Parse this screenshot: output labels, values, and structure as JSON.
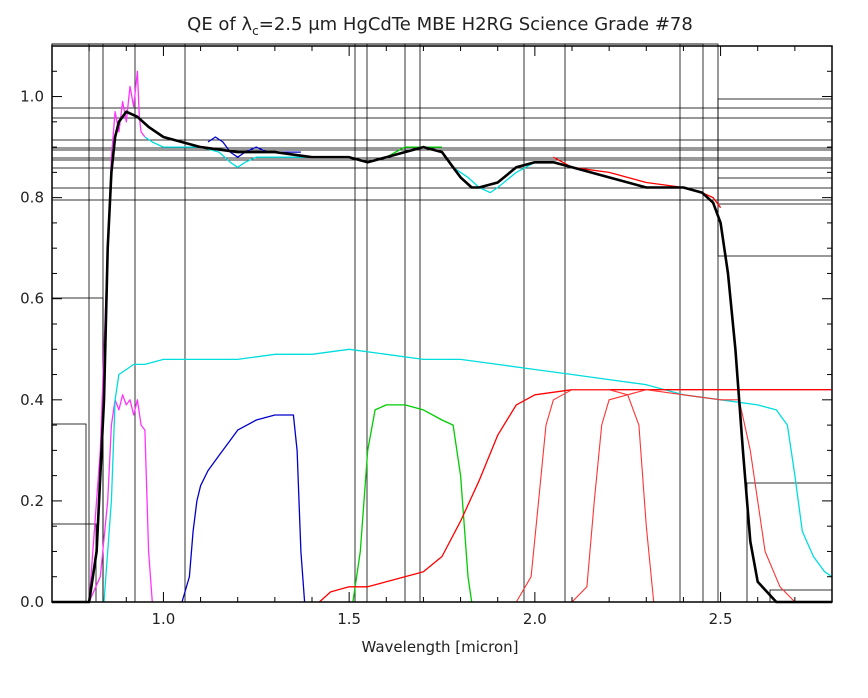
{
  "chart_data": {
    "type": "line",
    "title": "QE of λc=2.5 μm HgCdTe MBE H2RG Science Grade #78",
    "title_parts": {
      "pre": "QE of λ",
      "sub": "c",
      "post": "=2.5 μm HgCdTe MBE H2RG Science Grade #78"
    },
    "xlabel": "Wavelength [micron]",
    "ylabel": "",
    "xlim": [
      0.7,
      2.8
    ],
    "ylim": [
      0.0,
      1.1
    ],
    "x_ticks": [
      1.0,
      1.5,
      2.0,
      2.5
    ],
    "x_tick_labels": [
      "1.0",
      "1.5",
      "2.0",
      "2.5"
    ],
    "y_ticks": [
      0.0,
      0.2,
      0.4,
      0.6,
      0.8,
      1.0
    ],
    "y_tick_labels": [
      "0.0",
      "0.2",
      "0.4",
      "0.6",
      "0.8",
      "1.0"
    ],
    "grid": false,
    "legend": "none",
    "series": [
      {
        "color": "#ff33ff",
        "width": 1.3,
        "points": [
          [
            0.8,
            0.0
          ],
          [
            0.83,
            0.05
          ],
          [
            0.85,
            0.2
          ],
          [
            0.86,
            0.35
          ],
          [
            0.87,
            0.4
          ],
          [
            0.88,
            0.38
          ],
          [
            0.89,
            0.41
          ],
          [
            0.9,
            0.39
          ],
          [
            0.91,
            0.4
          ],
          [
            0.92,
            0.37
          ],
          [
            0.93,
            0.4
          ],
          [
            0.94,
            0.35
          ],
          [
            0.95,
            0.34
          ],
          [
            0.96,
            0.1
          ],
          [
            0.97,
            0.0
          ]
        ]
      },
      {
        "color": "#ff33ff",
        "width": 1.3,
        "points": [
          [
            0.8,
            0.0
          ],
          [
            0.83,
            0.3
          ],
          [
            0.85,
            0.7
          ],
          [
            0.86,
            0.88
          ],
          [
            0.87,
            0.97
          ],
          [
            0.88,
            0.93
          ],
          [
            0.89,
            0.99
          ],
          [
            0.9,
            0.95
          ],
          [
            0.91,
            1.02
          ],
          [
            0.92,
            0.98
          ],
          [
            0.93,
            1.05
          ],
          [
            0.935,
            0.96
          ],
          [
            0.94,
            0.93
          ],
          [
            0.95,
            0.92
          ]
        ]
      },
      {
        "color": "#00dddd",
        "width": 1.3,
        "points": [
          [
            0.84,
            0.0
          ],
          [
            0.86,
            0.2
          ],
          [
            0.87,
            0.4
          ],
          [
            0.88,
            0.45
          ],
          [
            0.9,
            0.46
          ],
          [
            0.92,
            0.47
          ],
          [
            0.95,
            0.47
          ],
          [
            1.0,
            0.48
          ],
          [
            1.1,
            0.48
          ],
          [
            1.2,
            0.48
          ],
          [
            1.3,
            0.49
          ],
          [
            1.4,
            0.49
          ],
          [
            1.5,
            0.5
          ],
          [
            1.6,
            0.49
          ],
          [
            1.7,
            0.48
          ],
          [
            1.8,
            0.48
          ],
          [
            1.9,
            0.47
          ],
          [
            2.0,
            0.46
          ],
          [
            2.1,
            0.45
          ],
          [
            2.2,
            0.44
          ],
          [
            2.3,
            0.43
          ],
          [
            2.4,
            0.41
          ],
          [
            2.5,
            0.4
          ],
          [
            2.6,
            0.39
          ],
          [
            2.65,
            0.38
          ],
          [
            2.68,
            0.35
          ],
          [
            2.7,
            0.25
          ],
          [
            2.72,
            0.14
          ],
          [
            2.75,
            0.09
          ],
          [
            2.78,
            0.06
          ],
          [
            2.8,
            0.05
          ]
        ]
      },
      {
        "color": "#00dddd",
        "width": 1.3,
        "points": [
          [
            0.95,
            0.92
          ],
          [
            0.97,
            0.91
          ],
          [
            1.0,
            0.9
          ],
          [
            1.1,
            0.9
          ],
          [
            1.15,
            0.89
          ],
          [
            1.18,
            0.87
          ],
          [
            1.2,
            0.86
          ],
          [
            1.22,
            0.87
          ],
          [
            1.25,
            0.88
          ],
          [
            1.3,
            0.88
          ],
          [
            1.4,
            0.88
          ],
          [
            1.5,
            0.88
          ],
          [
            1.55,
            0.87
          ],
          [
            1.6,
            0.88
          ],
          [
            1.65,
            0.89
          ],
          [
            1.7,
            0.9
          ],
          [
            1.75,
            0.89
          ],
          [
            1.78,
            0.86
          ],
          [
            1.8,
            0.85
          ],
          [
            1.82,
            0.84
          ],
          [
            1.85,
            0.82
          ],
          [
            1.88,
            0.81
          ],
          [
            1.9,
            0.82
          ],
          [
            1.95,
            0.85
          ],
          [
            2.0,
            0.87
          ],
          [
            2.05,
            0.87
          ]
        ]
      },
      {
        "color": "#0000cc",
        "width": 1.3,
        "points": [
          [
            1.05,
            0.0
          ],
          [
            1.07,
            0.05
          ],
          [
            1.08,
            0.14
          ],
          [
            1.09,
            0.2
          ],
          [
            1.1,
            0.23
          ],
          [
            1.12,
            0.26
          ],
          [
            1.15,
            0.29
          ],
          [
            1.18,
            0.32
          ],
          [
            1.2,
            0.34
          ],
          [
            1.25,
            0.36
          ],
          [
            1.3,
            0.37
          ],
          [
            1.35,
            0.37
          ],
          [
            1.36,
            0.3
          ],
          [
            1.37,
            0.1
          ],
          [
            1.38,
            0.0
          ]
        ]
      },
      {
        "color": "#0000cc",
        "width": 1.3,
        "points": [
          [
            1.12,
            0.91
          ],
          [
            1.14,
            0.92
          ],
          [
            1.16,
            0.91
          ],
          [
            1.18,
            0.89
          ],
          [
            1.2,
            0.88
          ],
          [
            1.22,
            0.89
          ],
          [
            1.25,
            0.9
          ],
          [
            1.28,
            0.89
          ],
          [
            1.3,
            0.89
          ],
          [
            1.35,
            0.89
          ],
          [
            1.37,
            0.89
          ]
        ]
      },
      {
        "color": "#00cc00",
        "width": 1.3,
        "points": [
          [
            1.51,
            0.0
          ],
          [
            1.53,
            0.1
          ],
          [
            1.55,
            0.3
          ],
          [
            1.57,
            0.38
          ],
          [
            1.6,
            0.39
          ],
          [
            1.65,
            0.39
          ],
          [
            1.7,
            0.38
          ],
          [
            1.75,
            0.36
          ],
          [
            1.78,
            0.35
          ],
          [
            1.8,
            0.25
          ],
          [
            1.82,
            0.05
          ],
          [
            1.83,
            0.0
          ]
        ]
      },
      {
        "color": "#00cc00",
        "width": 1.3,
        "points": [
          [
            1.55,
            0.87
          ],
          [
            1.6,
            0.88
          ],
          [
            1.65,
            0.9
          ],
          [
            1.7,
            0.9
          ],
          [
            1.75,
            0.9
          ]
        ]
      },
      {
        "color": "#ff0000",
        "width": 1.3,
        "points": [
          [
            1.42,
            0.0
          ],
          [
            1.45,
            0.02
          ],
          [
            1.5,
            0.03
          ],
          [
            1.55,
            0.03
          ],
          [
            1.6,
            0.04
          ],
          [
            1.65,
            0.05
          ],
          [
            1.7,
            0.06
          ],
          [
            1.75,
            0.09
          ],
          [
            1.8,
            0.16
          ],
          [
            1.85,
            0.24
          ],
          [
            1.9,
            0.33
          ],
          [
            1.95,
            0.39
          ],
          [
            2.0,
            0.41
          ],
          [
            2.1,
            0.42
          ],
          [
            2.2,
            0.42
          ],
          [
            2.3,
            0.42
          ],
          [
            2.4,
            0.42
          ],
          [
            2.5,
            0.42
          ],
          [
            2.6,
            0.42
          ],
          [
            2.7,
            0.42
          ],
          [
            2.8,
            0.42
          ]
        ]
      },
      {
        "color": "#ff3333",
        "width": 1.1,
        "points": [
          [
            1.95,
            0.0
          ],
          [
            1.99,
            0.05
          ],
          [
            2.01,
            0.2
          ],
          [
            2.03,
            0.35
          ],
          [
            2.05,
            0.4
          ],
          [
            2.1,
            0.42
          ],
          [
            2.2,
            0.42
          ],
          [
            2.25,
            0.41
          ],
          [
            2.28,
            0.35
          ],
          [
            2.3,
            0.15
          ],
          [
            2.32,
            0.0
          ]
        ]
      },
      {
        "color": "#ff3333",
        "width": 1.1,
        "points": [
          [
            2.1,
            0.0
          ],
          [
            2.14,
            0.03
          ],
          [
            2.16,
            0.2
          ],
          [
            2.18,
            0.35
          ],
          [
            2.2,
            0.4
          ],
          [
            2.3,
            0.42
          ],
          [
            2.4,
            0.41
          ],
          [
            2.5,
            0.4
          ],
          [
            2.55,
            0.4
          ],
          [
            2.58,
            0.3
          ],
          [
            2.62,
            0.1
          ],
          [
            2.66,
            0.03
          ],
          [
            2.7,
            0.0
          ]
        ]
      },
      {
        "color": "#ff0000",
        "width": 1.3,
        "points": [
          [
            2.05,
            0.88
          ],
          [
            2.1,
            0.86
          ],
          [
            2.2,
            0.85
          ],
          [
            2.3,
            0.83
          ],
          [
            2.4,
            0.82
          ],
          [
            2.45,
            0.81
          ],
          [
            2.48,
            0.8
          ],
          [
            2.5,
            0.78
          ]
        ]
      },
      {
        "color": "#000000",
        "width": 2.6,
        "points": [
          [
            0.7,
            0.0
          ],
          [
            0.8,
            0.0
          ],
          [
            0.82,
            0.1
          ],
          [
            0.84,
            0.4
          ],
          [
            0.85,
            0.7
          ],
          [
            0.86,
            0.85
          ],
          [
            0.87,
            0.92
          ],
          [
            0.88,
            0.95
          ],
          [
            0.9,
            0.97
          ],
          [
            0.93,
            0.96
          ],
          [
            0.96,
            0.94
          ],
          [
            1.0,
            0.92
          ],
          [
            1.1,
            0.9
          ],
          [
            1.2,
            0.89
          ],
          [
            1.3,
            0.89
          ],
          [
            1.4,
            0.88
          ],
          [
            1.5,
            0.88
          ],
          [
            1.55,
            0.87
          ],
          [
            1.6,
            0.88
          ],
          [
            1.65,
            0.89
          ],
          [
            1.7,
            0.9
          ],
          [
            1.75,
            0.89
          ],
          [
            1.78,
            0.86
          ],
          [
            1.8,
            0.84
          ],
          [
            1.83,
            0.82
          ],
          [
            1.85,
            0.82
          ],
          [
            1.9,
            0.83
          ],
          [
            1.95,
            0.86
          ],
          [
            2.0,
            0.87
          ],
          [
            2.05,
            0.87
          ],
          [
            2.1,
            0.86
          ],
          [
            2.2,
            0.84
          ],
          [
            2.3,
            0.82
          ],
          [
            2.4,
            0.82
          ],
          [
            2.45,
            0.81
          ],
          [
            2.48,
            0.79
          ],
          [
            2.5,
            0.75
          ],
          [
            2.52,
            0.65
          ],
          [
            2.54,
            0.5
          ],
          [
            2.56,
            0.3
          ],
          [
            2.58,
            0.12
          ],
          [
            2.6,
            0.04
          ],
          [
            2.65,
            0.0
          ],
          [
            2.8,
            0.0
          ]
        ]
      }
    ]
  }
}
